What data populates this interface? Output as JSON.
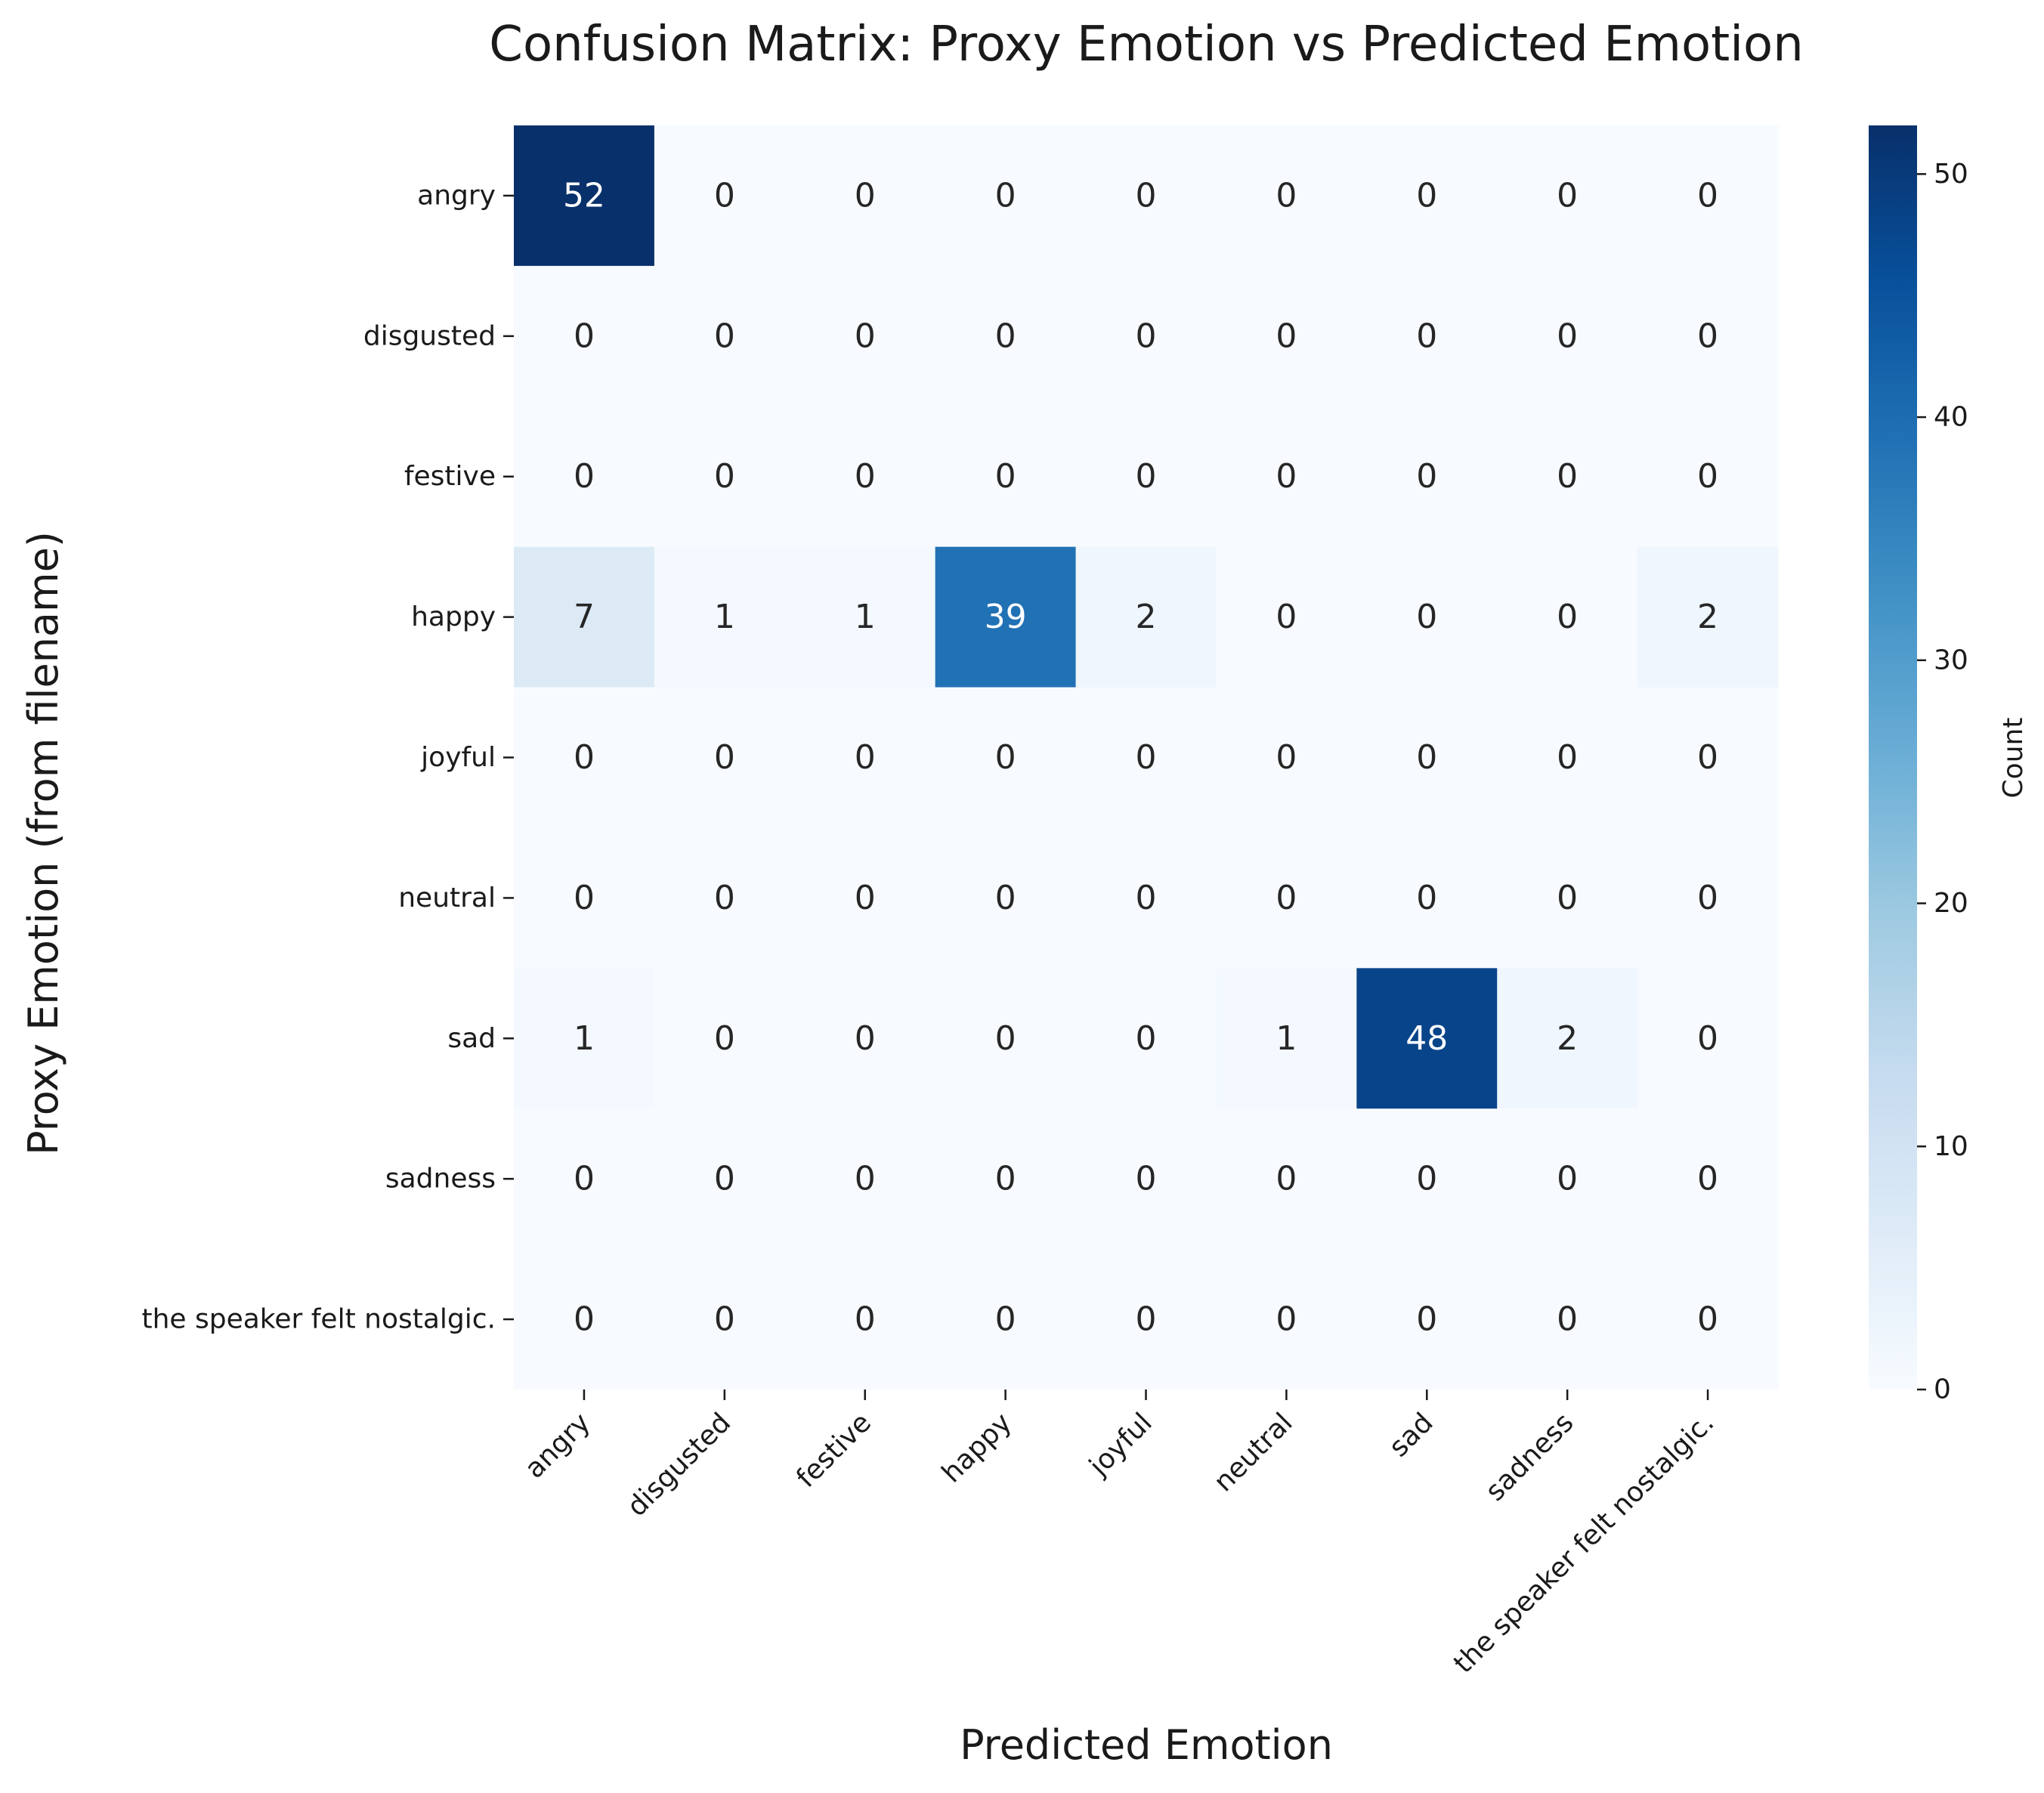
{
  "chart_data": {
    "type": "heatmap",
    "title": "Confusion Matrix: Proxy Emotion vs Predicted Emotion",
    "xlabel": "Predicted Emotion",
    "ylabel": "Proxy Emotion (from filename)",
    "x_categories": [
      "angry",
      "disgusted",
      "festive",
      "happy",
      "joyful",
      "neutral",
      "sad",
      "sadness",
      "the speaker felt nostalgic."
    ],
    "y_categories": [
      "angry",
      "disgusted",
      "festive",
      "happy",
      "joyful",
      "neutral",
      "sad",
      "sadness",
      "the speaker felt nostalgic."
    ],
    "values": [
      [
        52,
        0,
        0,
        0,
        0,
        0,
        0,
        0,
        0
      ],
      [
        0,
        0,
        0,
        0,
        0,
        0,
        0,
        0,
        0
      ],
      [
        0,
        0,
        0,
        0,
        0,
        0,
        0,
        0,
        0
      ],
      [
        7,
        1,
        1,
        39,
        2,
        0,
        0,
        0,
        2
      ],
      [
        0,
        0,
        0,
        0,
        0,
        0,
        0,
        0,
        0
      ],
      [
        0,
        0,
        0,
        0,
        0,
        0,
        0,
        0,
        0
      ],
      [
        1,
        0,
        0,
        0,
        0,
        1,
        48,
        2,
        0
      ],
      [
        0,
        0,
        0,
        0,
        0,
        0,
        0,
        0,
        0
      ],
      [
        0,
        0,
        0,
        0,
        0,
        0,
        0,
        0,
        0
      ]
    ],
    "colorbar": {
      "label": "Count",
      "range": [
        0,
        52
      ],
      "ticks": [
        0,
        10,
        20,
        30,
        40,
        50
      ],
      "colormap": "Blues"
    }
  }
}
